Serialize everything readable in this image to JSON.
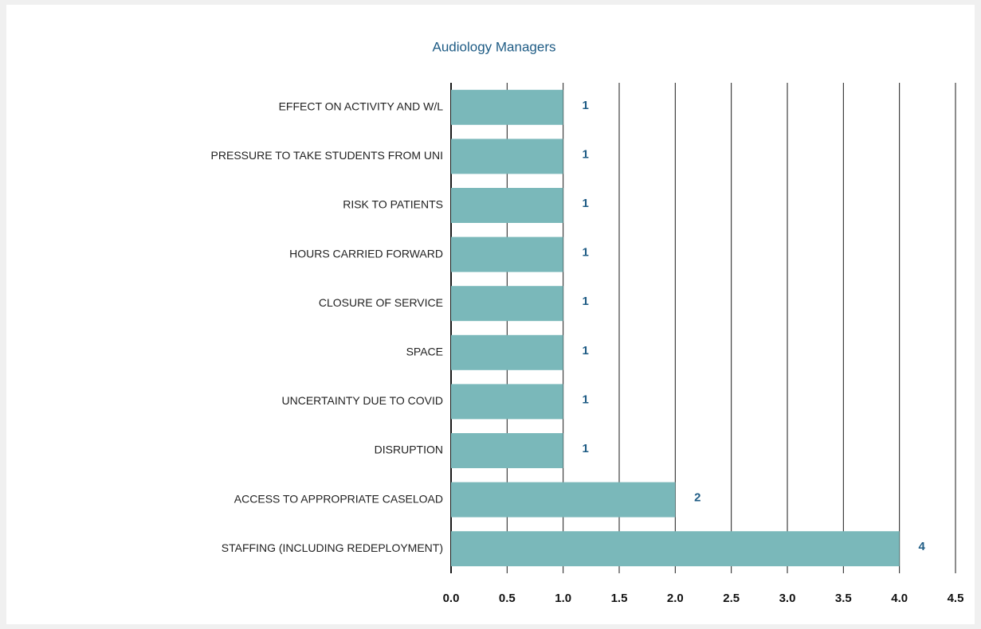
{
  "chart_data": {
    "type": "bar",
    "orientation": "horizontal",
    "title": "Audiology Managers",
    "categories": [
      "EFFECT ON ACTIVITY AND W/L",
      "PRESSURE TO TAKE STUDENTS FROM UNI",
      "RISK TO PATIENTS",
      "HOURS CARRIED FORWARD",
      "CLOSURE OF SERVICE",
      "SPACE",
      "UNCERTAINTY DUE TO COVID",
      "DISRUPTION",
      "ACCESS TO APPROPRIATE CASELOAD",
      "STAFFING (INCLUDING REDEPLOYMENT)"
    ],
    "values": [
      1,
      1,
      1,
      1,
      1,
      1,
      1,
      1,
      2,
      4
    ],
    "color": "#7ab8ba",
    "label_color": "#1f5c85",
    "xlim": [
      0,
      4.5
    ],
    "xticks": [
      {
        "value": 0,
        "label": "0.0"
      },
      0.5,
      {
        "value": 1,
        "label": "1.0"
      },
      1.5,
      {
        "value": 2,
        "label": "2.0"
      },
      2.5,
      {
        "value": 3,
        "label": "3.0"
      },
      3.5,
      {
        "value": 4,
        "label": "4.0"
      },
      4.5
    ],
    "grid": true
  }
}
